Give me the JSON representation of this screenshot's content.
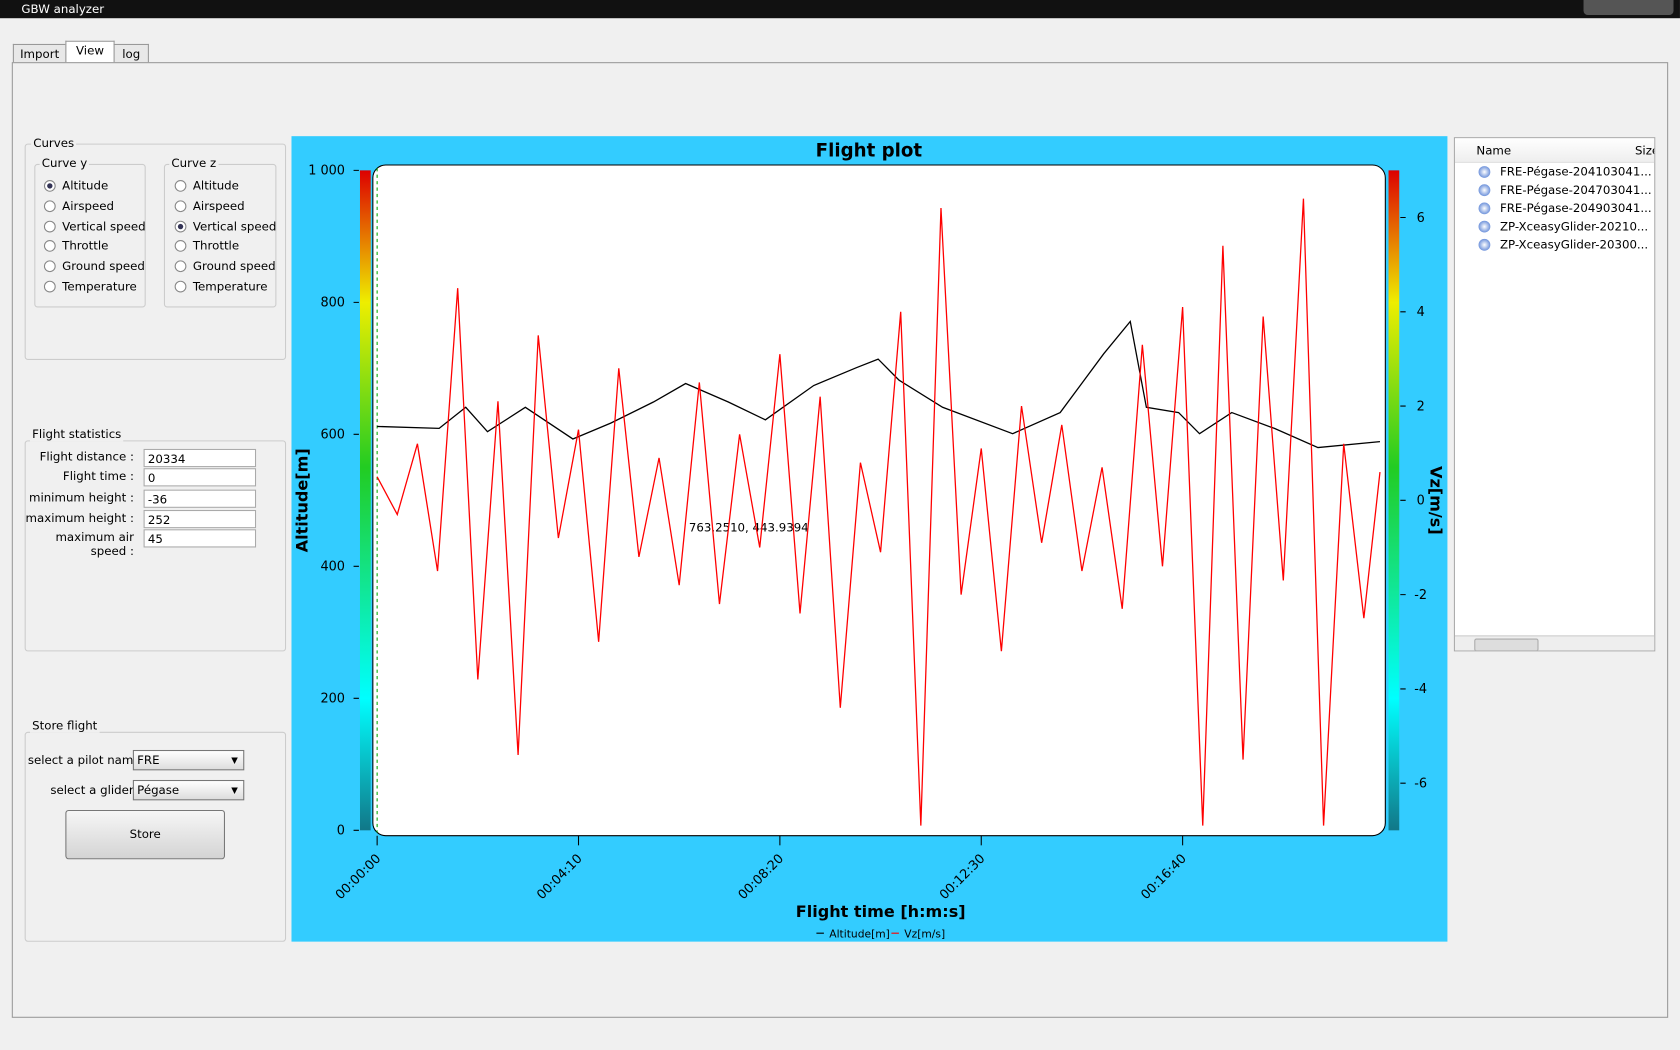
{
  "window": {
    "title": "GBW analyzer"
  },
  "tabs": [
    "Import",
    "View",
    "log"
  ],
  "curves": {
    "title": "Curves",
    "curve_y": {
      "title": "Curve y",
      "options": [
        "Altitude",
        "Airspeed",
        "Vertical speed",
        "Throttle",
        "Ground speed",
        "Temperature"
      ],
      "selected": 0
    },
    "curve_z": {
      "title": "Curve z",
      "options": [
        "Altitude",
        "Airspeed",
        "Vertical speed",
        "Throttle",
        "Ground speed",
        "Temperature"
      ],
      "selected": 2
    }
  },
  "statistics": {
    "title": "Flight statistics",
    "rows": [
      {
        "label": "Flight distance :",
        "value": "20334"
      },
      {
        "label": "Flight time :",
        "value": "0"
      },
      {
        "label": "minimum height :",
        "value": "-36"
      },
      {
        "label": "maximum height :",
        "value": "252"
      },
      {
        "label": "maximum air speed :",
        "value": "45"
      }
    ]
  },
  "store": {
    "title": "Store flight",
    "pilot_label": "select a pilot name :",
    "pilot": "FRE",
    "glider_label": "select a glider :",
    "glider": "Pégase",
    "button": "Store"
  },
  "files": {
    "columns": [
      "Name",
      "Size"
    ],
    "items": [
      "FRE-Pégase-204103041...",
      "FRE-Pégase-204703041...",
      "FRE-Pégase-204903041...",
      "ZP-XceasyGlider-20210...",
      "ZP-XceasyGlider-20300..."
    ]
  },
  "chart_data": {
    "type": "line",
    "title": "Flight plot",
    "x_label": "Flight time [h:m:s]",
    "y_label": "Altitude[m]",
    "y2_label": "Vz[m/s]",
    "annotation": "763.2510, 443.9394",
    "xlim": [
      0,
      1245
    ],
    "xticks": [
      {
        "value": 0,
        "label": "00:00:00"
      },
      {
        "value": 250,
        "label": "00:04:10"
      },
      {
        "value": 500,
        "label": "00:08:20"
      },
      {
        "value": 750,
        "label": "00:12:30"
      },
      {
        "value": 1000,
        "label": "00:16:40"
      }
    ],
    "ylim": [
      0,
      1000
    ],
    "yticks": [
      0,
      200,
      400,
      600,
      800,
      {
        "value": 1000,
        "label": "1 000"
      }
    ],
    "y2lim": [
      -7,
      7
    ],
    "y2ticks": [
      -6,
      -4,
      -2,
      0,
      2,
      4,
      6
    ],
    "series": [
      {
        "name": "Altitude[m]",
        "color": "#000000",
        "x": [
          0,
          77,
          110,
          137,
          184,
          243,
          290,
          343,
          383,
          436,
          482,
          542,
          595,
          622,
          648,
          702,
          789,
          848,
          902,
          935,
          955,
          995,
          1021,
          1061,
          1114,
          1168,
          1245
        ],
        "values": [
          612,
          609,
          641,
          604,
          641,
          593,
          617,
          649,
          677,
          649,
          622,
          674,
          701,
          714,
          682,
          641,
          601,
          633,
          722,
          771,
          641,
          633,
          601,
          633,
          609,
          580,
          589
        ]
      },
      {
        "name": "Vz[m/s]",
        "color": "#ff0000",
        "axis": "y2",
        "x": [
          0,
          25,
          50,
          75,
          100,
          125,
          150,
          175,
          200,
          225,
          250,
          275,
          300,
          325,
          350,
          375,
          400,
          425,
          450,
          475,
          500,
          525,
          550,
          575,
          600,
          625,
          650,
          675,
          700,
          725,
          750,
          775,
          800,
          825,
          850,
          875,
          900,
          925,
          950,
          975,
          1000,
          1025,
          1050,
          1075,
          1100,
          1125,
          1150,
          1175,
          1200,
          1225,
          1245
        ],
        "values": [
          0.5,
          -0.3,
          1.2,
          -1.5,
          4.5,
          -3.8,
          2.1,
          -5.4,
          3.5,
          -0.8,
          1.5,
          -3.0,
          2.8,
          -1.2,
          0.9,
          -1.8,
          2.5,
          -2.2,
          1.4,
          -1.0,
          3.1,
          -2.4,
          2.2,
          -4.4,
          0.8,
          -1.1,
          4.0,
          -6.9,
          6.2,
          -2.0,
          1.1,
          -3.2,
          2.0,
          -0.9,
          1.6,
          -1.5,
          0.7,
          -2.3,
          3.3,
          -1.4,
          4.1,
          -6.9,
          5.4,
          -5.5,
          3.9,
          -1.7,
          6.4,
          -6.9,
          1.2,
          -2.5,
          0.6
        ]
      }
    ]
  }
}
